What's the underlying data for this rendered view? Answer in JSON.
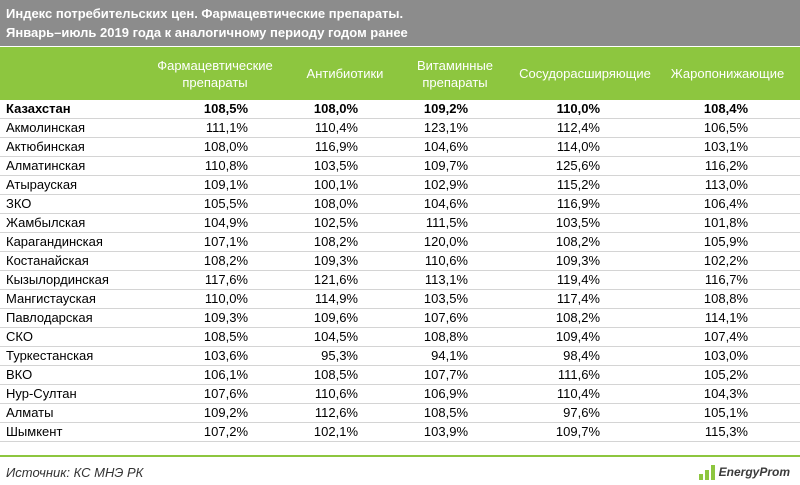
{
  "title": {
    "line1": "Индекс потребительских цен. Фармацевтические препараты.",
    "line2": "Январь–июль 2019 года к аналогичному периоду годом ранее"
  },
  "columns": [
    "Фармацевтические препараты",
    "Антибиотики",
    "Витаминные препараты",
    "Сосудорасширяющие",
    "Жаропонижающие"
  ],
  "rows": [
    {
      "region": "Казахстан",
      "values": [
        "108,5%",
        "108,0%",
        "109,2%",
        "110,0%",
        "108,4%"
      ]
    },
    {
      "region": "Акмолинская",
      "values": [
        "111,1%",
        "110,4%",
        "123,1%",
        "112,4%",
        "106,5%"
      ]
    },
    {
      "region": "Актюбинская",
      "values": [
        "108,0%",
        "116,9%",
        "104,6%",
        "114,0%",
        "103,1%"
      ]
    },
    {
      "region": "Алматинская",
      "values": [
        "110,8%",
        "103,5%",
        "109,7%",
        "125,6%",
        "116,2%"
      ]
    },
    {
      "region": "Атырауская",
      "values": [
        "109,1%",
        "100,1%",
        "102,9%",
        "115,2%",
        "113,0%"
      ]
    },
    {
      "region": "ЗКО",
      "values": [
        "105,5%",
        "108,0%",
        "104,6%",
        "116,9%",
        "106,4%"
      ]
    },
    {
      "region": "Жамбылская",
      "values": [
        "104,9%",
        "102,5%",
        "111,5%",
        "103,5%",
        "101,8%"
      ]
    },
    {
      "region": "Карагандинская",
      "values": [
        "107,1%",
        "108,2%",
        "120,0%",
        "108,2%",
        "105,9%"
      ]
    },
    {
      "region": "Костанайская",
      "values": [
        "108,2%",
        "109,3%",
        "110,6%",
        "109,3%",
        "102,2%"
      ]
    },
    {
      "region": "Кызылординская",
      "values": [
        "117,6%",
        "121,6%",
        "113,1%",
        "119,4%",
        "116,7%"
      ]
    },
    {
      "region": "Мангистауская",
      "values": [
        "110,0%",
        "114,9%",
        "103,5%",
        "117,4%",
        "108,8%"
      ]
    },
    {
      "region": "Павлодарская",
      "values": [
        "109,3%",
        "109,6%",
        "107,6%",
        "108,2%",
        "114,1%"
      ]
    },
    {
      "region": "СКО",
      "values": [
        "108,5%",
        "104,5%",
        "108,8%",
        "109,4%",
        "107,4%"
      ]
    },
    {
      "region": "Туркестанская",
      "values": [
        "103,6%",
        "95,3%",
        "94,1%",
        "98,4%",
        "103,0%"
      ]
    },
    {
      "region": "ВКО",
      "values": [
        "106,1%",
        "108,5%",
        "107,7%",
        "111,6%",
        "105,2%"
      ]
    },
    {
      "region": "Нур-Султан",
      "values": [
        "107,6%",
        "110,6%",
        "106,9%",
        "110,4%",
        "104,3%"
      ]
    },
    {
      "region": "Алматы",
      "values": [
        "109,2%",
        "112,6%",
        "108,5%",
        "97,6%",
        "105,1%"
      ]
    },
    {
      "region": "Шымкент",
      "values": [
        "107,2%",
        "102,1%",
        "103,9%",
        "109,7%",
        "115,3%"
      ]
    }
  ],
  "footer": {
    "source": "Источник: КС МНЭ РК",
    "logo_text": "EnergyProm",
    "logo_icon": "energyprom-logo-icon"
  },
  "colors": {
    "title_bg": "#8c8c8c",
    "header_bg": "#8dc63f",
    "header_text": "#ffffff"
  }
}
